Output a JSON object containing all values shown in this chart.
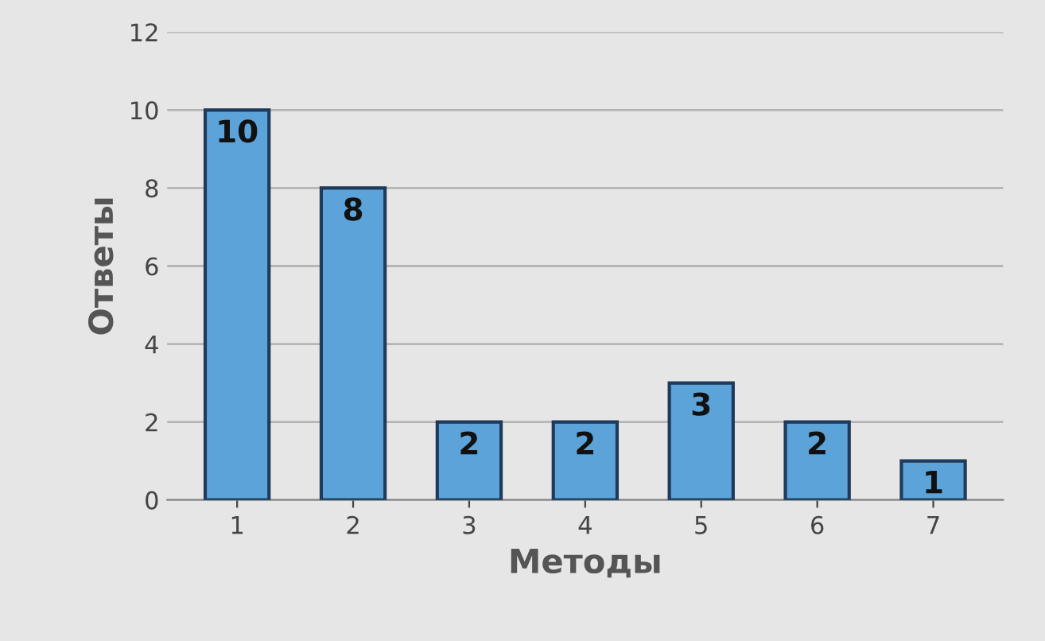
{
  "chart_data": {
    "type": "bar",
    "xlabel": "Методы",
    "ylabel": "Ответы",
    "categories": [
      "1",
      "2",
      "3",
      "4",
      "5",
      "6",
      "7"
    ],
    "values": [
      10,
      8,
      2,
      2,
      3,
      2,
      1
    ],
    "color": "#5ba3d9",
    "ylim": [
      0,
      12
    ],
    "yticks": [
      0,
      2,
      4,
      6,
      8,
      10,
      12
    ],
    "grid": "y",
    "data_labels": true
  }
}
